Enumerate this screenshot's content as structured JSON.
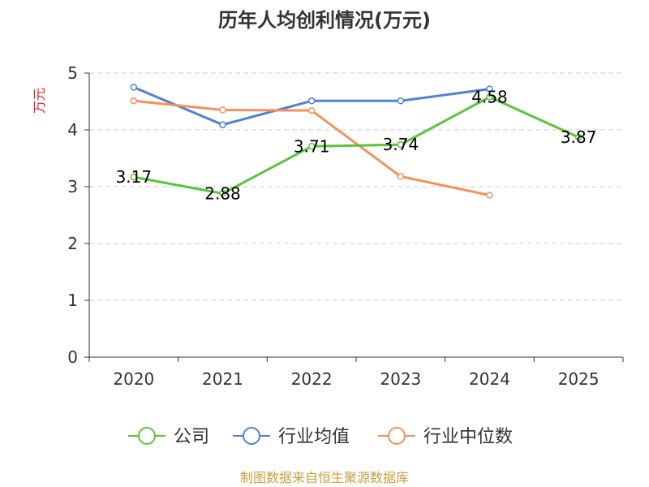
{
  "chart_data": {
    "type": "line",
    "title": "历年人均创利情况(万元)",
    "ylabel": "万元",
    "ylim": [
      0,
      5
    ],
    "yticks": [
      0,
      1,
      2,
      3,
      4,
      5
    ],
    "categories": [
      "2020",
      "2021",
      "2022",
      "2023",
      "2024",
      "2025"
    ],
    "grid": true,
    "legend_position": "bottom",
    "series": [
      {
        "name": "公司",
        "color": "#5ac43c",
        "values": [
          3.17,
          2.88,
          3.71,
          3.74,
          4.58,
          3.87
        ],
        "data_labels": [
          "3.17",
          "2.88",
          "3.71",
          "3.74",
          "4.58",
          "3.87"
        ]
      },
      {
        "name": "行业均值",
        "color": "#4f81d4",
        "values": [
          4.75,
          4.09,
          4.51,
          4.51,
          4.72,
          null
        ]
      },
      {
        "name": "行业中位数",
        "color": "#f5905a",
        "values": [
          4.51,
          4.35,
          4.34,
          3.18,
          2.85,
          null
        ]
      }
    ]
  },
  "source_text": "制图数据来自恒生聚源数据库",
  "colors": {
    "ylabel": "#e02020",
    "source": "#c8a040",
    "axis": "#333333",
    "grid": "#cccccc"
  }
}
